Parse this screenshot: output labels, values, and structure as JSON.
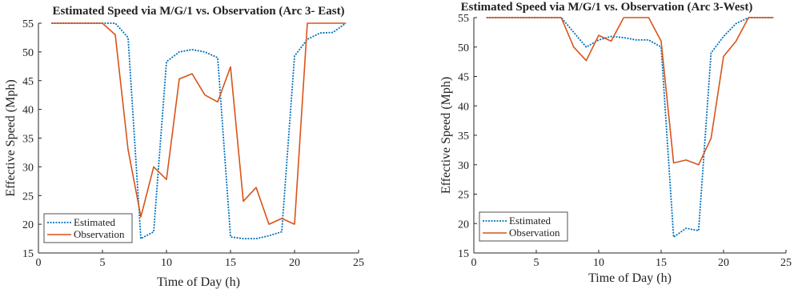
{
  "chart_data": [
    {
      "type": "line",
      "title": "Estimated Speed via M/G/1 vs. Observation (Arc 3- East)",
      "xlabel": "Time of Day (h)",
      "ylabel": "Effective Speed (Mph)",
      "xlim": [
        0,
        25
      ],
      "ylim": [
        15,
        55
      ],
      "xticks": [
        "0",
        "5",
        "10",
        "15",
        "20",
        "25"
      ],
      "yticks": [
        "15",
        "20",
        "25",
        "30",
        "35",
        "40",
        "45",
        "50",
        "55"
      ],
      "legend_position": "bottom-left",
      "grid": false,
      "x": [
        1,
        2,
        3,
        4,
        5,
        6,
        7,
        8,
        9,
        10,
        11,
        12,
        13,
        14,
        15,
        16,
        17,
        18,
        19,
        20,
        21,
        22,
        23,
        24
      ],
      "series": [
        {
          "name": "Estimated",
          "color": "#0072BD",
          "style": "dotted",
          "values": [
            55,
            55,
            55,
            55,
            55,
            55,
            52.5,
            17.5,
            18.7,
            48.3,
            50,
            50.4,
            50,
            49,
            17.8,
            17.5,
            17.5,
            18,
            18.7,
            49.3,
            52.2,
            53.3,
            53.4,
            55
          ]
        },
        {
          "name": "Observation",
          "color": "#D95319",
          "style": "solid",
          "values": [
            55,
            55,
            55,
            55,
            55,
            53,
            33,
            21.3,
            30,
            27.8,
            45.3,
            46.2,
            42.5,
            41.3,
            47.4,
            24,
            26.4,
            20,
            21,
            20,
            55,
            55,
            55,
            55
          ]
        }
      ]
    },
    {
      "type": "line",
      "title": "Estimated Speed via M/G/1 vs. Observation (Arc 3-West)",
      "xlabel": "Time of Day (h)",
      "ylabel": "Effective Speed (Mph)",
      "xlim": [
        0,
        25
      ],
      "ylim": [
        15,
        55
      ],
      "xticks": [
        "0",
        "5",
        "10",
        "15",
        "20",
        "25"
      ],
      "yticks": [
        "15",
        "20",
        "25",
        "30",
        "35",
        "40",
        "45",
        "50",
        "55"
      ],
      "legend_position": "bottom-left",
      "grid": false,
      "x": [
        1,
        2,
        3,
        4,
        5,
        6,
        7,
        8,
        9,
        10,
        11,
        12,
        13,
        14,
        15,
        16,
        17,
        18,
        19,
        20,
        21,
        22,
        23,
        24
      ],
      "series": [
        {
          "name": "Estimated",
          "color": "#0072BD",
          "style": "dotted",
          "values": [
            55,
            55,
            55,
            55,
            55,
            55,
            55,
            52.5,
            50,
            51.2,
            51.8,
            51.6,
            51.2,
            51.2,
            50,
            17.7,
            19.2,
            18.8,
            49,
            51.8,
            54,
            55,
            55,
            55
          ]
        },
        {
          "name": "Observation",
          "color": "#D95319",
          "style": "solid",
          "values": [
            55,
            55,
            55,
            55,
            55,
            55,
            55,
            50,
            47.7,
            52,
            51,
            55,
            55,
            55,
            51,
            30.3,
            30.8,
            30,
            34.5,
            48.4,
            51,
            55,
            55,
            55
          ]
        }
      ]
    }
  ]
}
